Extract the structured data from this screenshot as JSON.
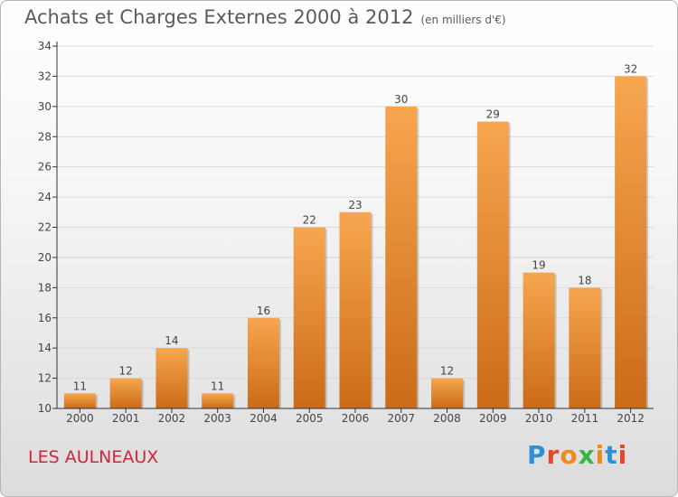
{
  "header": {
    "title": "Achats et Charges Externes 2000 à 2012",
    "subtitle": "(en milliers d'€)"
  },
  "footer": {
    "commune": "LES AULNEAUX",
    "logo_text": "Proxiti",
    "logo_colors": [
      "#2f8fd6",
      "#e8452c",
      "#f08a1c",
      "#3ab54a",
      "#f08a1c",
      "#2f8fd6",
      "#e8452c"
    ]
  },
  "colors": {
    "bar_light": "#f7a64f",
    "bar_dark": "#cb6b17",
    "grid": "#d9d9d9",
    "axis": "#333333",
    "title": "#5a5a5a",
    "commune": "#d0253f"
  },
  "chart_data": {
    "type": "bar",
    "title": "Achats et Charges Externes 2000 à 2012",
    "subtitle": "(en milliers d'€)",
    "categories": [
      "2000",
      "2001",
      "2002",
      "2003",
      "2004",
      "2005",
      "2006",
      "2007",
      "2008",
      "2009",
      "2010",
      "2011",
      "2012"
    ],
    "values": [
      11,
      12,
      14,
      11,
      16,
      22,
      23,
      30,
      12,
      29,
      19,
      18,
      32
    ],
    "ylim": [
      10,
      34
    ],
    "yticks": [
      10,
      12,
      14,
      16,
      18,
      20,
      22,
      24,
      26,
      28,
      30,
      32,
      34
    ],
    "grid": true,
    "data_labels": true
  }
}
